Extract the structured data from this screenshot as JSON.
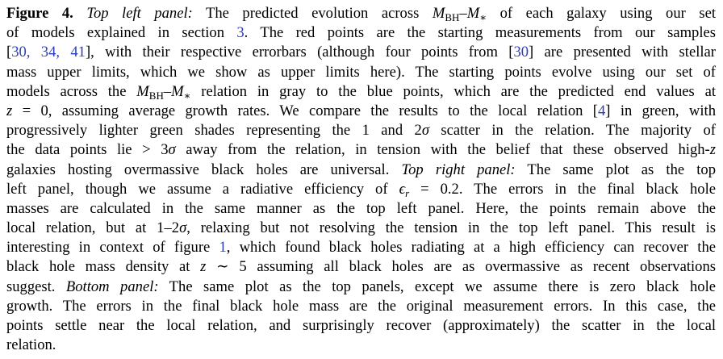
{
  "caption": {
    "lines": [
      [
        "Figure 4.",
        "Top left panel:",
        " The predicted evolution across ",
        "M",
        "BH",
        "–",
        "M",
        "∗",
        " of each galaxy using our set"
      ],
      [
        "of models explained in section ",
        "3",
        ". The red points are the starting measurements from our samples"
      ],
      [
        "[",
        "30, 34, 41",
        "], with their respective errorbars (although four points from [",
        "30",
        "] are presented with stellar"
      ],
      [
        "mass upper limits, which we show as upper limits here). The starting points evolve using our set of"
      ],
      [
        "models across the ",
        "M",
        "BH",
        "–",
        "M",
        "∗",
        " relation in gray to the blue points, which are the predicted end values at"
      ],
      [
        "z",
        " = 0, assuming average growth rates. We compare the results to the local relation [",
        "4",
        "] in green, with"
      ],
      [
        "progressively lighter green shades representing the 1 and 2",
        "σ",
        " scatter in the relation. The majority of"
      ],
      [
        "the data points lie > 3",
        "σ",
        " away from the relation, in tension with the belief that these observed high-",
        "z"
      ],
      [
        "galaxies hosting overmassive black holes are universal. ",
        "Top right panel:",
        " The same plot as the top"
      ],
      [
        "left panel, though we assume a radiative efficiency of ",
        "ϵ",
        "r",
        " = 0.2. The errors in the final black hole"
      ],
      [
        "masses are calculated in the same manner as the top left panel. Here, the points remain above the"
      ],
      [
        "local relation, but at 1–2",
        "σ",
        ", relaxing but not resolving the tension in the top left panel. This result is"
      ],
      [
        "interesting in context of figure ",
        "1",
        ", which found black holes radiating at a high efficiency can recover the"
      ],
      [
        "black hole mass density at ",
        "z",
        " ∼ 5 assuming all black holes are as overmassive as recent observations"
      ],
      [
        "suggest. ",
        "Bottom panel:",
        " The same plot as the top panels, except we assume there is zero black hole"
      ],
      [
        "growth. The errors in the final black hole mass are the original measurement errors. In this case, the"
      ],
      [
        "points settle near the local relation, and surprisingly recover (approximately) the scatter in the local"
      ],
      [
        "relation."
      ]
    ]
  }
}
